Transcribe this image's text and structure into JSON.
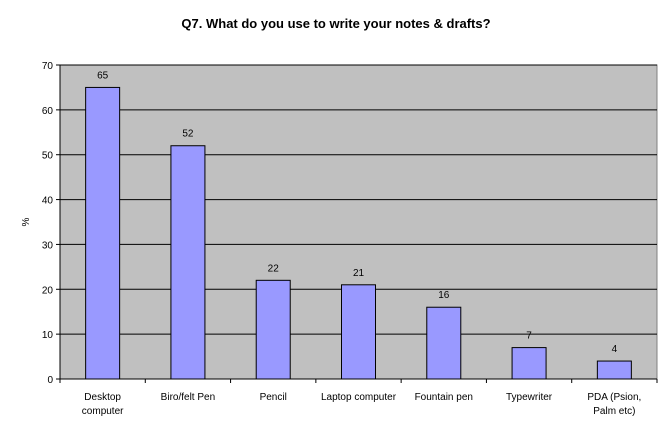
{
  "chart_data": {
    "type": "bar",
    "title": "Q7. What do you use to write your notes & drafts?",
    "xlabel": "",
    "ylabel": "%",
    "categories": [
      [
        "Desktop",
        "computer"
      ],
      [
        "Biro/felt Pen"
      ],
      [
        "Pencil"
      ],
      [
        "Laptop computer"
      ],
      [
        "Fountain pen"
      ],
      [
        "Typewriter"
      ],
      [
        "PDA (Psion,",
        "Palm etc)"
      ]
    ],
    "values": [
      65,
      52,
      22,
      21,
      16,
      7,
      4
    ],
    "data_labels": [
      "65",
      "52",
      "22",
      "21",
      "16",
      "7",
      "4"
    ],
    "ylim": [
      0,
      70
    ],
    "yticks": [
      0,
      10,
      20,
      30,
      40,
      50,
      60,
      70
    ],
    "grid": true,
    "legend": "none"
  },
  "colors": {
    "plot_background": "#c0c0c0",
    "bar_fill": "#9999ff",
    "bar_stroke": "#000000",
    "gridline": "#000000"
  }
}
